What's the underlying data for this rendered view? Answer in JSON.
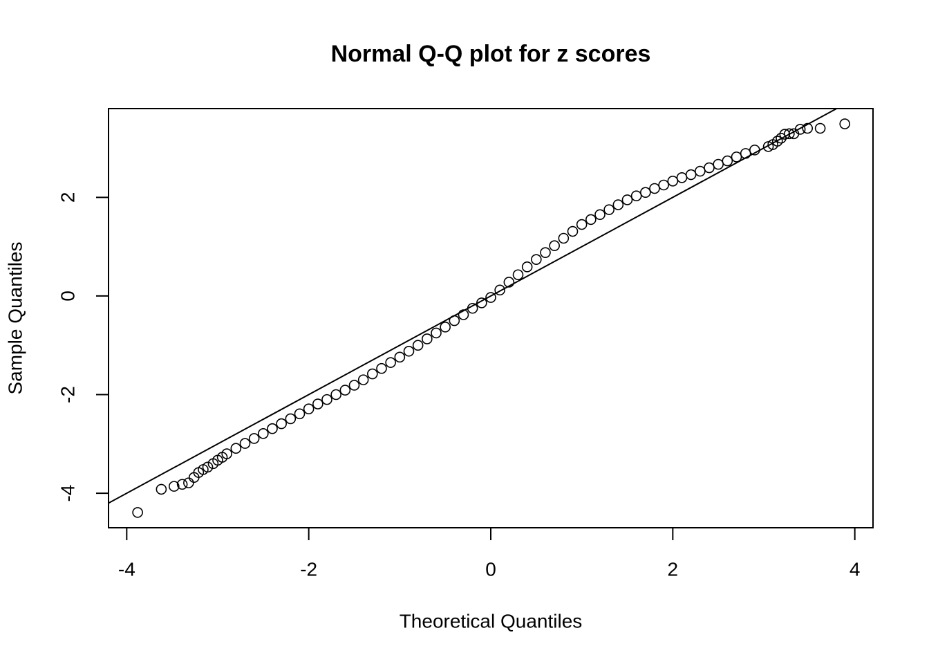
{
  "chart_data": {
    "type": "scatter",
    "title": "Normal Q-Q plot for z scores",
    "x_label": "Theoretical Quantiles",
    "y_label": "Sample Quantiles",
    "color": "#000000",
    "xlim": [
      -4.2,
      4.2
    ],
    "ylim": [
      -4.7,
      3.8
    ],
    "xticks": [
      -4,
      -2,
      0,
      2,
      4
    ],
    "yticks": [
      -4,
      -2,
      0,
      2
    ],
    "reference_line": {
      "intercept": 0,
      "slope": 1
    },
    "x": [
      -3.88,
      -3.62,
      -3.48,
      -3.39,
      -3.32,
      -3.26,
      -3.21,
      -3.16,
      -3.11,
      -3.05,
      -3.0,
      -2.95,
      -2.9,
      -2.8,
      -2.7,
      -2.6,
      -2.5,
      -2.4,
      -2.3,
      -2.2,
      -2.1,
      -2.0,
      -1.9,
      -1.8,
      -1.7,
      -1.6,
      -1.5,
      -1.4,
      -1.3,
      -1.2,
      -1.1,
      -1.0,
      -0.9,
      -0.8,
      -0.7,
      -0.6,
      -0.5,
      -0.4,
      -0.3,
      -0.2,
      -0.1,
      0.0,
      0.1,
      0.2,
      0.3,
      0.4,
      0.5,
      0.6,
      0.7,
      0.8,
      0.9,
      1.0,
      1.1,
      1.2,
      1.3,
      1.4,
      1.5,
      1.6,
      1.7,
      1.8,
      1.9,
      2.0,
      2.1,
      2.2,
      2.3,
      2.4,
      2.5,
      2.6,
      2.7,
      2.8,
      2.9,
      3.05,
      3.1,
      3.15,
      3.19,
      3.23,
      3.28,
      3.33,
      3.4,
      3.48,
      3.62,
      3.89
    ],
    "values": [
      -4.39,
      -3.92,
      -3.86,
      -3.82,
      -3.79,
      -3.68,
      -3.58,
      -3.52,
      -3.47,
      -3.4,
      -3.33,
      -3.27,
      -3.2,
      -3.09,
      -2.99,
      -2.89,
      -2.79,
      -2.69,
      -2.59,
      -2.49,
      -2.39,
      -2.29,
      -2.19,
      -2.1,
      -2.0,
      -1.91,
      -1.81,
      -1.7,
      -1.58,
      -1.47,
      -1.35,
      -1.24,
      -1.12,
      -1.0,
      -0.87,
      -0.75,
      -0.63,
      -0.5,
      -0.38,
      -0.25,
      -0.14,
      -0.03,
      0.12,
      0.28,
      0.43,
      0.59,
      0.74,
      0.88,
      1.02,
      1.17,
      1.31,
      1.45,
      1.55,
      1.65,
      1.75,
      1.85,
      1.95,
      2.03,
      2.1,
      2.18,
      2.25,
      2.33,
      2.4,
      2.46,
      2.53,
      2.6,
      2.67,
      2.74,
      2.82,
      2.89,
      2.96,
      3.03,
      3.07,
      3.14,
      3.2,
      3.28,
      3.29,
      3.29,
      3.38,
      3.4,
      3.4,
      3.49
    ]
  }
}
